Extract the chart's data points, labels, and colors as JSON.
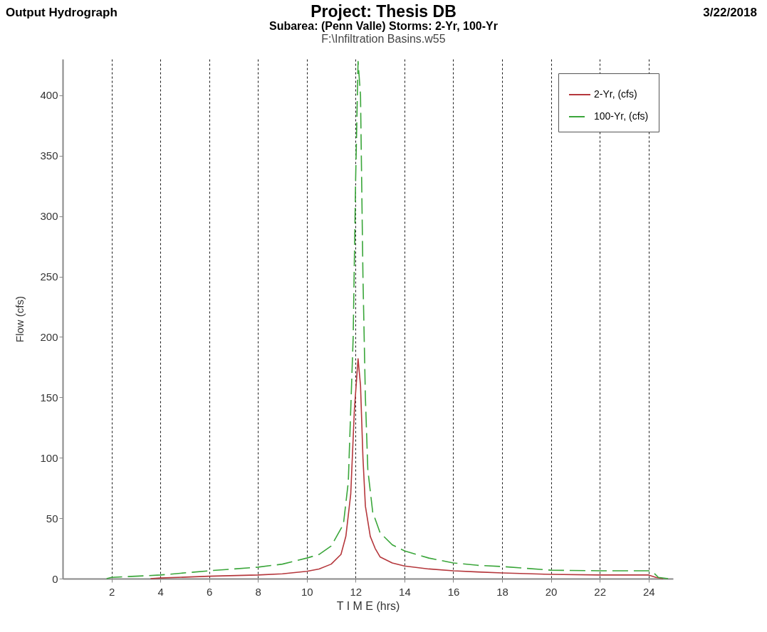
{
  "chart_data": {
    "type": "line",
    "title": "Project: Thesis DB",
    "subtitle": "Subarea: (Penn Valle)  Storms: 2-Yr, 100-Yr",
    "annotations": [
      "Output Hydrograph",
      "3/22/2018",
      "F:\\Infiltration Basins.w55"
    ],
    "xlabel": "T I M E (hrs)",
    "ylabel": "Flow (cfs)",
    "xlim": [
      0,
      25
    ],
    "ylim": [
      0,
      430
    ],
    "xticks": [
      2,
      4,
      6,
      8,
      10,
      12,
      14,
      16,
      18,
      20,
      22,
      24
    ],
    "yticks": [
      0,
      50,
      100,
      150,
      200,
      250,
      300,
      350,
      400
    ],
    "grid": "x",
    "legend": "top right",
    "marker": "none",
    "series": [
      {
        "name": "2-Yr, (cfs)",
        "color": "#b5373c",
        "line_style": "solid",
        "x": [
          3.6,
          4,
          6,
          8,
          9,
          10,
          10.5,
          11,
          11.4,
          11.6,
          11.8,
          11.95,
          12.1,
          12.2,
          12.3,
          12.4,
          12.6,
          12.8,
          13,
          13.5,
          14,
          15,
          16,
          17,
          18,
          20,
          22,
          24,
          24.3,
          24.6
        ],
        "values": [
          0,
          0.5,
          2,
          3,
          4,
          6,
          8,
          12,
          20,
          35,
          70,
          140,
          182,
          160,
          100,
          60,
          35,
          25,
          18,
          13,
          10.5,
          8,
          6.5,
          5.5,
          4.7,
          3.5,
          3,
          3,
          1,
          0
        ]
      },
      {
        "name": "100-Yr, (cfs)",
        "color": "#3aa63a",
        "line_style": "dashed",
        "x": [
          1.8,
          2,
          4,
          6,
          8,
          9,
          10,
          10.5,
          11,
          11.5,
          11.7,
          11.9,
          12.0,
          12.1,
          12.2,
          12.3,
          12.4,
          12.5,
          12.7,
          13,
          13.5,
          14,
          15,
          16,
          17,
          18,
          19,
          20,
          22,
          24,
          24.2,
          24.4,
          24.8
        ],
        "values": [
          0,
          1,
          3,
          6.5,
          9.5,
          12,
          17,
          20,
          27,
          45,
          80,
          200,
          330,
          428,
          400,
          250,
          150,
          90,
          55,
          38,
          28,
          23,
          17,
          13,
          11,
          10,
          8.5,
          7,
          6.5,
          6.5,
          5,
          1,
          0
        ]
      }
    ]
  }
}
